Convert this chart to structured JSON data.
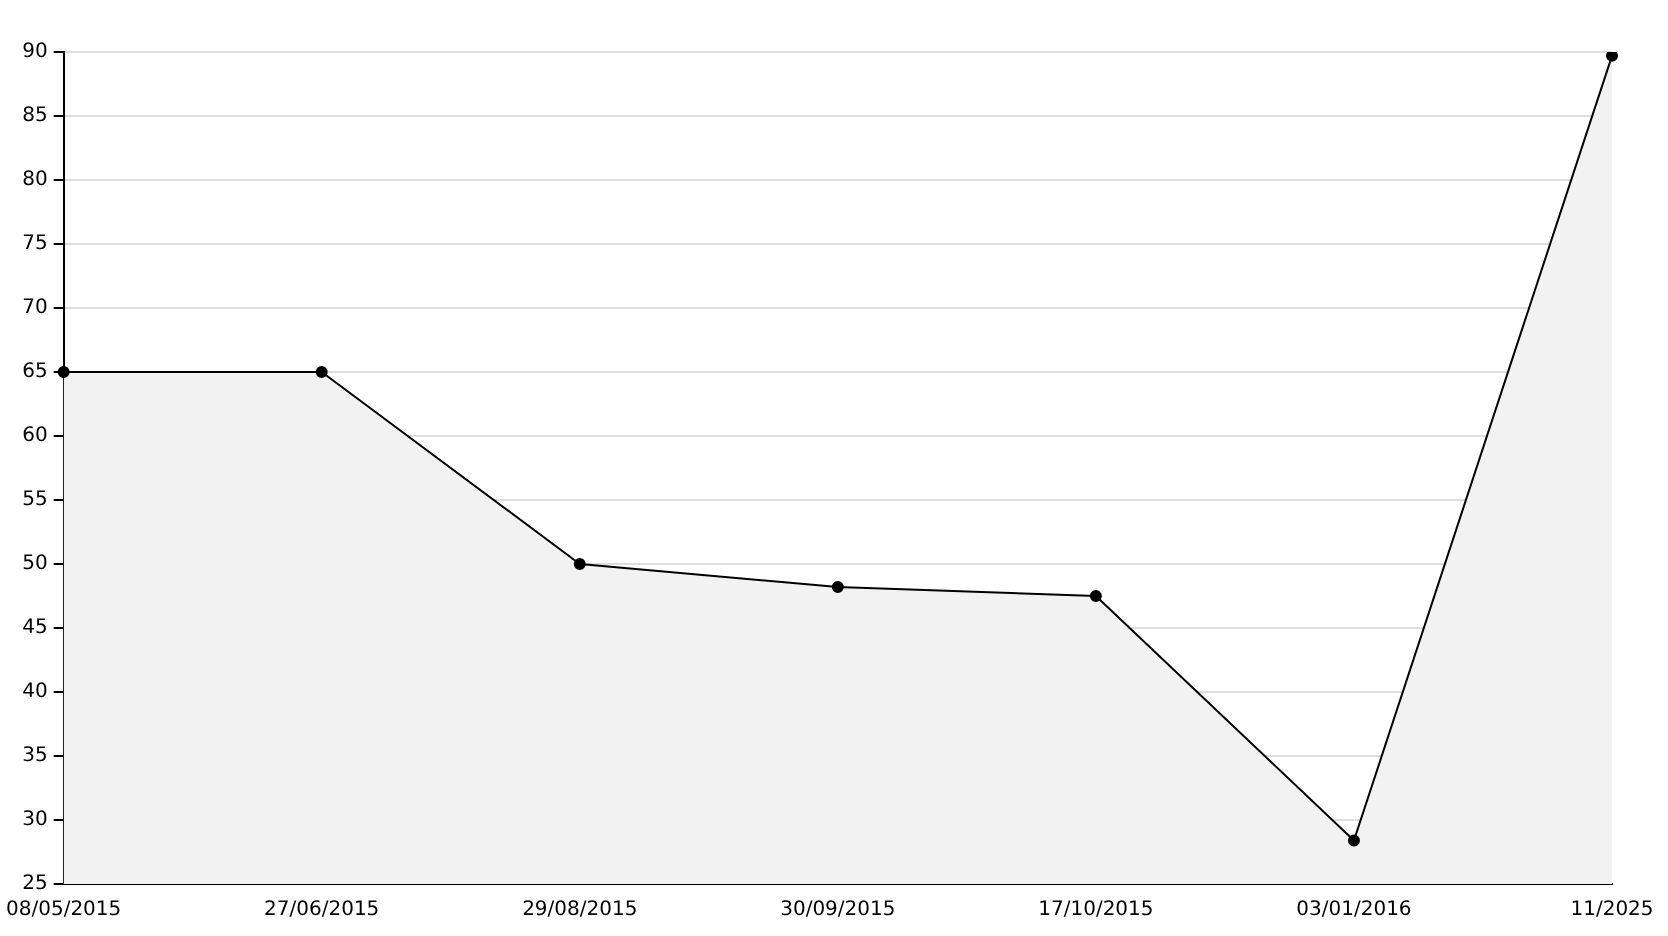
{
  "chart_data": {
    "type": "area",
    "categories": [
      "08/05/2015",
      "27/06/2015",
      "29/08/2015",
      "30/09/2015",
      "17/10/2015",
      "03/01/2016",
      "11/2025"
    ],
    "series": [
      {
        "color": "#000000",
        "values": [
          65,
          65,
          50,
          48.2,
          47.5,
          28.4,
          89.7
        ]
      }
    ],
    "ylim": [
      25,
      90
    ],
    "yticks": [
      25,
      30,
      35,
      40,
      45,
      50,
      55,
      60,
      65,
      70,
      75,
      80,
      85,
      90
    ],
    "grid": "y",
    "marker": "circle",
    "line_style": "solid"
  }
}
